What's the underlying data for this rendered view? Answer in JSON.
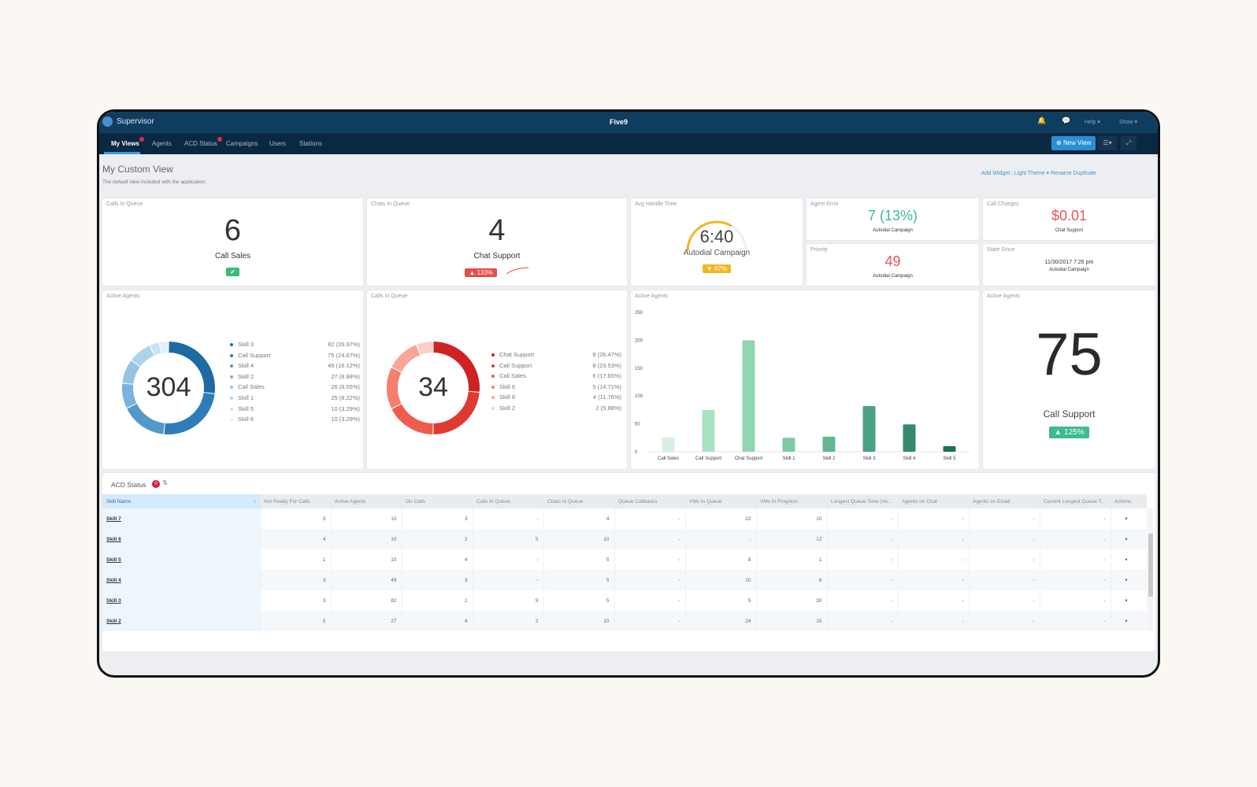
{
  "app": {
    "title": "Supervisor",
    "logo": "Five9",
    "icons": [
      "user-icon",
      "bell-icon",
      "chat-icon"
    ],
    "help": "Help ▾",
    "show": "Show ▾"
  },
  "nav": {
    "tabs": [
      {
        "label": "My Views",
        "active": true,
        "badge": true
      },
      {
        "label": "Agents"
      },
      {
        "label": "ACD Status",
        "badge": true
      },
      {
        "label": "Campaigns"
      },
      {
        "label": "Users"
      },
      {
        "label": "Stations"
      }
    ],
    "new_view": "New View"
  },
  "view": {
    "title": "My Custom View",
    "subtitle": "The default view included with the application.",
    "actions": [
      "Add Widget",
      "Light Theme ▾",
      "Rename",
      "Duplicate"
    ]
  },
  "widgets": {
    "calls_queue": {
      "title": "Calls In Queue",
      "value": "6",
      "label": "Call Sales",
      "status": "check"
    },
    "chats_queue": {
      "title": "Chats In Queue",
      "value": "4",
      "label": "Chat Support",
      "badge": "133%",
      "badge_color": "#e84c4c"
    },
    "aht": {
      "title": "Avg Handle Time",
      "value": "6:40",
      "label": "Autodial Campaign",
      "badge": "67%",
      "badge_color": "#f3b61f",
      "gauge": 0.67
    },
    "agent_error": {
      "title": "Agent Error",
      "value": "7 (13%)",
      "label": "Autodial Campaign",
      "color": "#3dbb8a"
    },
    "call_charges": {
      "title": "Call Charges",
      "value": "$0.01",
      "label": "Chat Support",
      "color": "#e8545a"
    },
    "priority": {
      "title": "Priority",
      "value": "49",
      "label": "Autodial Campaign",
      "color": "#e8545a"
    },
    "state_since": {
      "title": "State Since",
      "value": "11/30/2017 7:26 pm",
      "label": "Autodial Campaign"
    },
    "active_big": {
      "title": "Active Agents",
      "value": "75",
      "label": "Call Support",
      "badge": "125%",
      "badge_color": "#3dbb8a"
    }
  },
  "donut_agents": {
    "title": "Active Agents",
    "total": "304",
    "items": [
      {
        "name": "Skill 3",
        "value": 82,
        "text": "82 (26.97%)",
        "color": "#1d6aa5"
      },
      {
        "name": "Call Support",
        "value": 75,
        "text": "75 (24.67%)",
        "color": "#2e7db8"
      },
      {
        "name": "Skill 4",
        "value": 49,
        "text": "49 (16.12%)",
        "color": "#5298c9"
      },
      {
        "name": "Skill 2",
        "value": 27,
        "text": "27 (8.88%)",
        "color": "#7ab2db"
      },
      {
        "name": "Call Sales",
        "value": 26,
        "text": "26 (8.55%)",
        "color": "#94c3e4"
      },
      {
        "name": "Skill 1",
        "value": 25,
        "text": "25 (8.22%)",
        "color": "#add2ec"
      },
      {
        "name": "Skill 5",
        "value": 10,
        "text": "10 (3.29%)",
        "color": "#cde3f3"
      },
      {
        "name": "Skill 6",
        "value": 10,
        "text": "10 (3.29%)",
        "color": "#e2eef8"
      }
    ]
  },
  "donut_calls": {
    "title": "Calls In Queue",
    "total": "34",
    "items": [
      {
        "name": "Chat Support",
        "value": 9,
        "text": "9 (26.47%)",
        "color": "#cf2224"
      },
      {
        "name": "Call Support",
        "value": 8,
        "text": "8 (23.53%)",
        "color": "#e0392f"
      },
      {
        "name": "Call Sales",
        "value": 6,
        "text": "6 (17.65%)",
        "color": "#ef5c4b"
      },
      {
        "name": "Skill 6",
        "value": 5,
        "text": "5 (14.71%)",
        "color": "#f57f6c"
      },
      {
        "name": "Skill 8",
        "value": 4,
        "text": "4 (11.76%)",
        "color": "#f9a597"
      },
      {
        "name": "Skill 2",
        "value": 2,
        "text": "2 (5.88%)",
        "color": "#fbd0c9"
      }
    ]
  },
  "chart_data": {
    "type": "bar",
    "title": "Active Agents",
    "categories": [
      "Call Sales",
      "Call Support",
      "Chat Support",
      "Skill 1",
      "Skill 2",
      "Skill 3",
      "Skill 4",
      "Skill 5"
    ],
    "values": [
      26,
      75,
      200,
      25,
      27,
      82,
      49,
      10
    ],
    "colors": [
      "#d5efe0",
      "#a8e2c3",
      "#8fd6b1",
      "#7dcaa5",
      "#62b692",
      "#4aa283",
      "#35896f",
      "#1e6e56"
    ],
    "ylim": [
      0,
      250
    ],
    "yticks": [
      "0",
      "50",
      "100",
      "150",
      "200",
      "250"
    ]
  },
  "acd": {
    "title": "ACD Status",
    "count": "0",
    "columns": [
      "Skill Name",
      "Not Ready For Calls",
      "Active Agents",
      "On Calls",
      "Calls In Queue",
      "Chats In Queue",
      "Queue Callbacks",
      "VMs In Queue",
      "VMs In Progress",
      "Longest Queue Time (Vo...",
      "Agents on Chat",
      "Agents on Email",
      "Current Longest Queue T...",
      "Actions"
    ],
    "rows": [
      [
        "Skill 7",
        "5",
        "10",
        "3",
        "-",
        "4",
        "-",
        "22",
        "10",
        "-",
        "-",
        "-",
        "-"
      ],
      [
        "Skill 6",
        "4",
        "10",
        "2",
        "5",
        "10",
        "-",
        "-",
        "12",
        "-",
        "-",
        "-",
        "-"
      ],
      [
        "Skill 5",
        "1",
        "10",
        "4",
        "-",
        "5",
        "-",
        "8",
        "1",
        "-",
        "-",
        "-",
        "-"
      ],
      [
        "Skill 4",
        "3",
        "49",
        "3",
        "-",
        "5",
        "-",
        "10",
        "6",
        "-",
        "-",
        "-",
        "-"
      ],
      [
        "Skill 3",
        "3",
        "82",
        "1",
        "9",
        "5",
        "-",
        "5",
        "30",
        "-",
        "-",
        "-",
        "-"
      ],
      [
        "Skill 2",
        "5",
        "27",
        "4",
        "2",
        "10",
        "-",
        "24",
        "15",
        "-",
        "-",
        "-",
        "-"
      ]
    ],
    "action_icon": "▾"
  }
}
